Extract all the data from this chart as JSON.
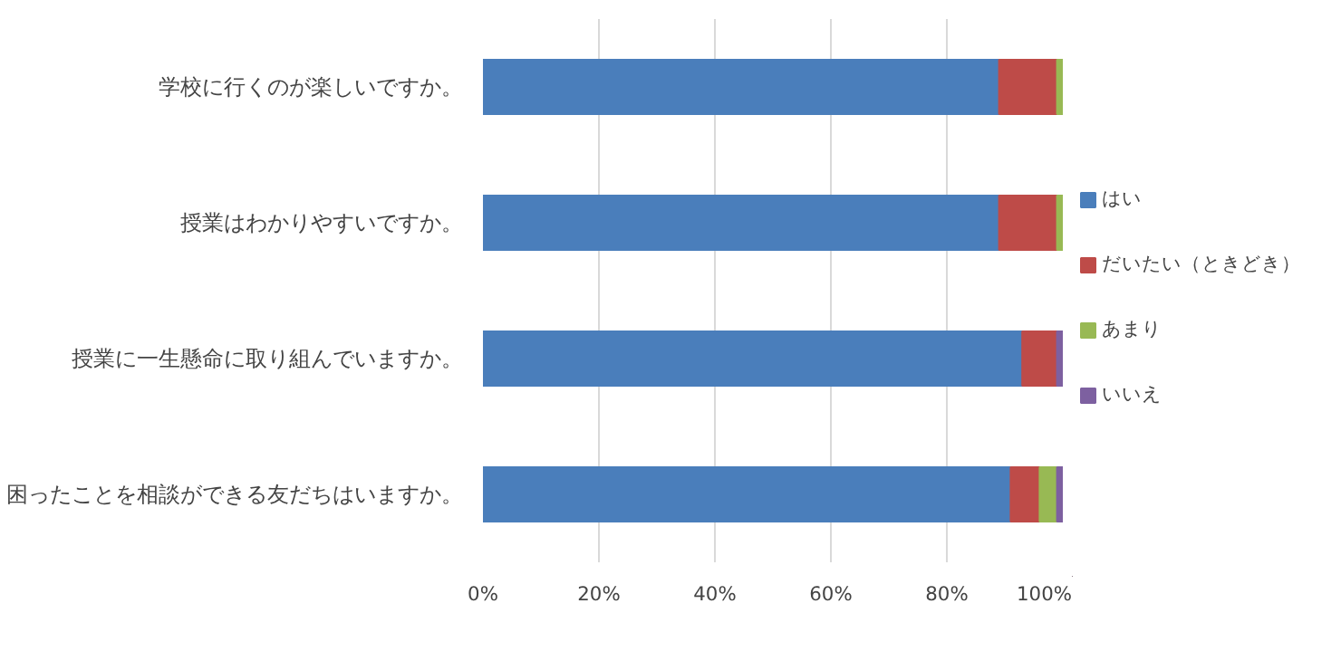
{
  "chart_data": {
    "type": "bar",
    "orientation": "horizontal",
    "stacked": true,
    "categories": [
      "学校に行くのが楽しいですか。",
      "授業はわかりやすいですか。",
      "授業に一生懸命に取り組んでいますか。",
      "困ったことを相談ができる友だちはいますか。"
    ],
    "series": [
      {
        "name": "はい",
        "color": "#4a7ebb",
        "values": [
          89,
          89,
          93,
          91
        ]
      },
      {
        "name": "だいたい（ときどき）",
        "color": "#be4b48",
        "values": [
          10,
          10,
          6,
          5
        ]
      },
      {
        "name": "あまり",
        "color": "#98b954",
        "values": [
          1,
          1,
          null,
          3
        ]
      },
      {
        "name": "いいえ",
        "color": "#7d60a0",
        "values": [
          null,
          null,
          1,
          1
        ]
      }
    ],
    "xlim": [
      0,
      100
    ],
    "xticks": [
      {
        "value": 0,
        "label": "0%"
      },
      {
        "value": 20,
        "label": "20%"
      },
      {
        "value": 40,
        "label": "40%"
      },
      {
        "value": 60,
        "label": "60%"
      },
      {
        "value": 80,
        "label": "80%"
      },
      {
        "value": 100,
        "label": "100%"
      }
    ],
    "grid": "x",
    "legend": "right"
  }
}
